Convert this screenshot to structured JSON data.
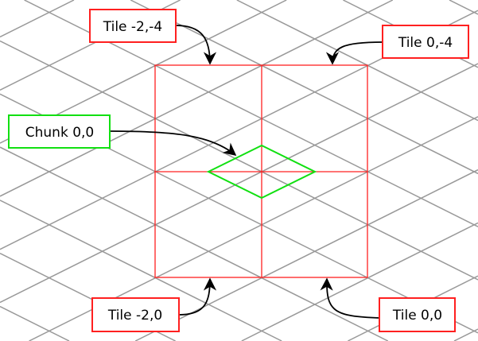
{
  "colors": {
    "grid": "#999999",
    "tile": "#ff0000",
    "chunk": "#00e000",
    "arrow": "#000000"
  },
  "labels": {
    "tile_a": "Tile -2,-4",
    "tile_b": "Tile 0,-4",
    "chunk": "Chunk 0,0",
    "tile_c": "Tile -2,0",
    "tile_d": "Tile 0,0"
  }
}
